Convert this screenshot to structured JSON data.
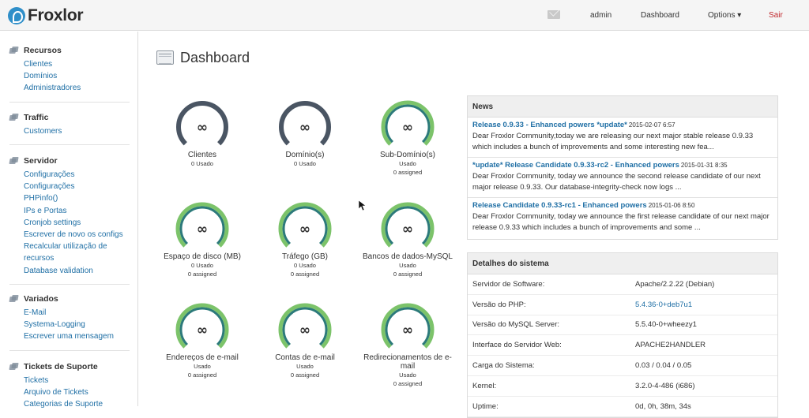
{
  "header": {
    "logo": "Froxlor",
    "user": "admin",
    "dashboard": "Dashboard",
    "options": "Options ▾",
    "logout": "Sair"
  },
  "sidebar": [
    {
      "title": "Recursos",
      "items": [
        "Clientes",
        "Domínios",
        "Administradores"
      ]
    },
    {
      "title": "Traffic",
      "items": [
        "Customers"
      ]
    },
    {
      "title": "Servidor",
      "items": [
        "Configurações",
        "Configurações",
        "PHPinfo()",
        "IPs e Portas",
        "Cronjob settings",
        "Escrever de novo os configs",
        "Recalcular utilização de",
        "recursos",
        "Database validation"
      ]
    },
    {
      "title": "Variados",
      "items": [
        "E-Mail",
        "Systema-Logging",
        "Escrever uma mensagem"
      ]
    },
    {
      "title": "Tickets de Suporte",
      "items": [
        "Tickets",
        "Arquivo de Tickets",
        "Categorias de Suporte"
      ]
    }
  ],
  "main": {
    "title": "Dashboard",
    "gauges": [
      {
        "label": "Clientes",
        "lines": [
          "0 Usado"
        ],
        "style": "gray",
        "symbol": "∞"
      },
      {
        "label": "Domínio(s)",
        "lines": [
          "0 Usado"
        ],
        "style": "gray",
        "symbol": "∞"
      },
      {
        "label": "Sub-Domínio(s)",
        "lines": [
          "Usado",
          "0 assigned"
        ],
        "style": "green",
        "symbol": "∞"
      },
      {
        "label": "Espaço de disco (MB)",
        "lines": [
          "0 Usado",
          "0 assigned"
        ],
        "style": "green",
        "symbol": "∞"
      },
      {
        "label": "Tráfego (GB)",
        "lines": [
          "0 Usado",
          "0 assigned"
        ],
        "style": "green",
        "symbol": "∞"
      },
      {
        "label": "Bancos de dados-MySQL",
        "lines": [
          "Usado",
          "0 assigned"
        ],
        "style": "green",
        "symbol": "∞"
      },
      {
        "label": "Endereços de e-mail",
        "lines": [
          "Usado",
          "0 assigned"
        ],
        "style": "green",
        "symbol": "∞"
      },
      {
        "label": "Contas de e-mail",
        "lines": [
          "Usado",
          "0 assigned"
        ],
        "style": "green",
        "symbol": "∞"
      },
      {
        "label": "Redirecionamentos de e-mail",
        "lines": [
          "Usado",
          "0 assigned"
        ],
        "style": "green",
        "symbol": "∞"
      }
    ]
  },
  "news": {
    "heading": "News",
    "items": [
      {
        "title": "Release 0.9.33 - Enhanced powers *update*",
        "date": "2015-02-07 6:57",
        "body": "Dear Froxlor Community,today we are releasing our next major stable release 0.9.33 which includes a bunch of improvements and some interesting new fea..."
      },
      {
        "title": "*update* Release Candidate 0.9.33-rc2 - Enhanced powers",
        "date": "2015-01-31 8:35",
        "body": "Dear Froxlor Community, today we announce the second release candidate of our next major release 0.9.33.   Our database-integrity-check now logs ..."
      },
      {
        "title": "Release Candidate 0.9.33-rc1 - Enhanced powers",
        "date": "2015-01-06 8:50",
        "body": "Dear Froxlor Community, today we announce the first release candidate of our next major release 0.9.33 which includes a bunch of improvements and some ..."
      }
    ]
  },
  "system": {
    "heading": "Detalhes do sistema",
    "rows": [
      {
        "key": "Servidor de Software:",
        "value": "Apache/2.2.22 (Debian)",
        "link": false
      },
      {
        "key": "Versão do PHP:",
        "value": "5.4.36-0+deb7u1",
        "link": true
      },
      {
        "key": "Versão do MySQL Server:",
        "value": "5.5.40-0+wheezy1",
        "link": false
      },
      {
        "key": "Interface do Servidor Web:",
        "value": "APACHE2HANDLER",
        "link": false
      },
      {
        "key": "Carga do Sistema:",
        "value": "0.03 / 0.04 / 0.05",
        "link": false
      },
      {
        "key": "Kernel:",
        "value": "3.2.0-4-486 (i686)",
        "link": false
      },
      {
        "key": "Uptime:",
        "value": "0d, 0h, 38m, 34s",
        "link": false
      }
    ]
  },
  "colors": {
    "link": "#1f6fa5",
    "gauge_gray": "#4a5563",
    "gauge_green": "#7cc36a",
    "gauge_green_inner": "#2c7a7a",
    "logout": "#c0282d"
  }
}
